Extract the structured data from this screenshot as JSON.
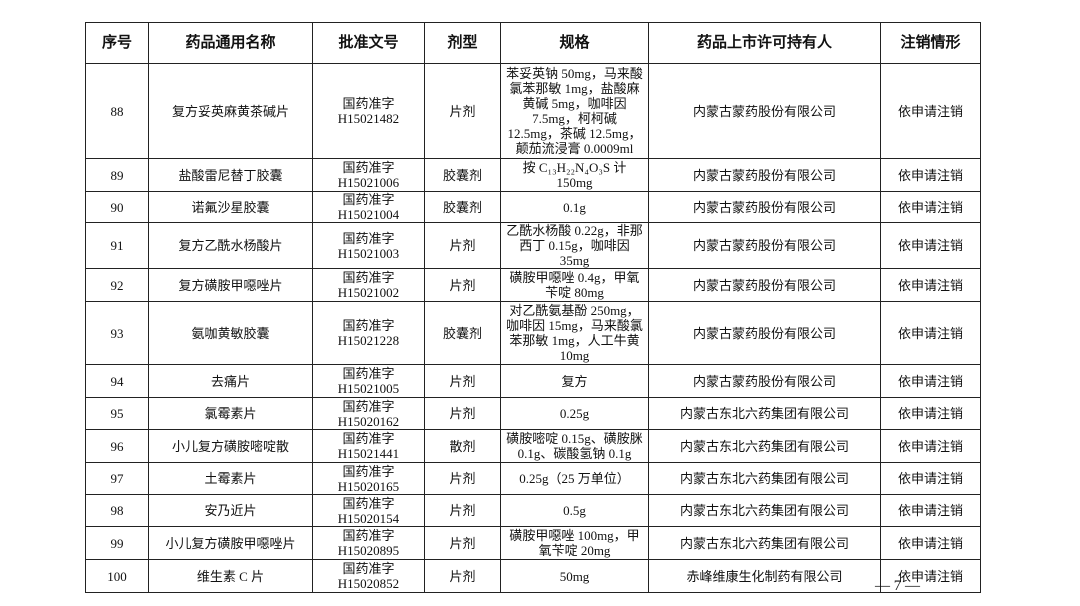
{
  "headers": [
    "序号",
    "药品通用名称",
    "批准文号",
    "剂型",
    "规格",
    "药品上市许可持有人",
    "注销情形"
  ],
  "rows": [
    {
      "no": "88",
      "name": "复方妥英麻黄茶碱片",
      "approval": [
        "国药准字",
        "H15021482"
      ],
      "form": "片剂",
      "spec": "苯妥英钠 50mg，马来酸氯苯那敏 1mg，盐酸麻黄碱 5mg，咖啡因 7.5mg，柯柯碱 12.5mg，茶碱 12.5mg，颠茄流浸膏 0.0009ml",
      "holder": "内蒙古蒙药股份有限公司",
      "status": "依申请注销"
    },
    {
      "no": "89",
      "name": "盐酸雷尼替丁胶囊",
      "approval": [
        "国药准字",
        "H15021006"
      ],
      "form": "胶囊剂",
      "spec": "按 C₁₃H₂₂N₄O₃S 计 150mg",
      "holder": "内蒙古蒙药股份有限公司",
      "status": "依申请注销"
    },
    {
      "no": "90",
      "name": "诺氟沙星胶囊",
      "approval": [
        "国药准字",
        "H15021004"
      ],
      "form": "胶囊剂",
      "spec": "0.1g",
      "holder": "内蒙古蒙药股份有限公司",
      "status": "依申请注销"
    },
    {
      "no": "91",
      "name": "复方乙酰水杨酸片",
      "approval": [
        "国药准字",
        "H15021003"
      ],
      "form": "片剂",
      "spec": "乙酰水杨酸 0.22g，非那西丁 0.15g，咖啡因 35mg",
      "holder": "内蒙古蒙药股份有限公司",
      "status": "依申请注销"
    },
    {
      "no": "92",
      "name": "复方磺胺甲噁唑片",
      "approval": [
        "国药准字",
        "H15021002"
      ],
      "form": "片剂",
      "spec": "磺胺甲噁唑 0.4g，甲氧苄啶 80mg",
      "holder": "内蒙古蒙药股份有限公司",
      "status": "依申请注销"
    },
    {
      "no": "93",
      "name": "氨咖黄敏胶囊",
      "approval": [
        "国药准字",
        "H15021228"
      ],
      "form": "胶囊剂",
      "spec": "对乙酰氨基酚 250mg，咖啡因 15mg，马来酸氯苯那敏 1mg，人工牛黄 10mg",
      "holder": "内蒙古蒙药股份有限公司",
      "status": "依申请注销"
    },
    {
      "no": "94",
      "name": "去痛片",
      "approval": [
        "国药准字",
        "H15021005"
      ],
      "form": "片剂",
      "spec": "复方",
      "holder": "内蒙古蒙药股份有限公司",
      "status": "依申请注销"
    },
    {
      "no": "95",
      "name": "氯霉素片",
      "approval": [
        "国药准字",
        "H15020162"
      ],
      "form": "片剂",
      "spec": "0.25g",
      "holder": "内蒙古东北六药集团有限公司",
      "status": "依申请注销"
    },
    {
      "no": "96",
      "name": "小儿复方磺胺嘧啶散",
      "approval": [
        "国药准字",
        "H15021441"
      ],
      "form": "散剂",
      "spec": "磺胺嘧啶 0.15g、磺胺脒 0.1g、碳酸氢钠 0.1g",
      "holder": "内蒙古东北六药集团有限公司",
      "status": "依申请注销"
    },
    {
      "no": "97",
      "name": "土霉素片",
      "approval": [
        "国药准字",
        "H15020165"
      ],
      "form": "片剂",
      "spec": "0.25g（25 万单位）",
      "holder": "内蒙古东北六药集团有限公司",
      "status": "依申请注销"
    },
    {
      "no": "98",
      "name": "安乃近片",
      "approval": [
        "国药准字",
        "H15020154"
      ],
      "form": "片剂",
      "spec": "0.5g",
      "holder": "内蒙古东北六药集团有限公司",
      "status": "依申请注销"
    },
    {
      "no": "99",
      "name": "小儿复方磺胺甲噁唑片",
      "approval": [
        "国药准字",
        "H15020895"
      ],
      "form": "片剂",
      "spec": "磺胺甲噁唑 100mg，甲氧苄啶 20mg",
      "holder": "内蒙古东北六药集团有限公司",
      "status": "依申请注销"
    },
    {
      "no": "100",
      "name": "维生素 C 片",
      "approval": [
        "国药准字",
        "H15020852"
      ],
      "form": "片剂",
      "spec": "50mg",
      "holder": "赤峰维康生化制药有限公司",
      "status": "依申请注销"
    }
  ],
  "page_number": "— 7 —"
}
